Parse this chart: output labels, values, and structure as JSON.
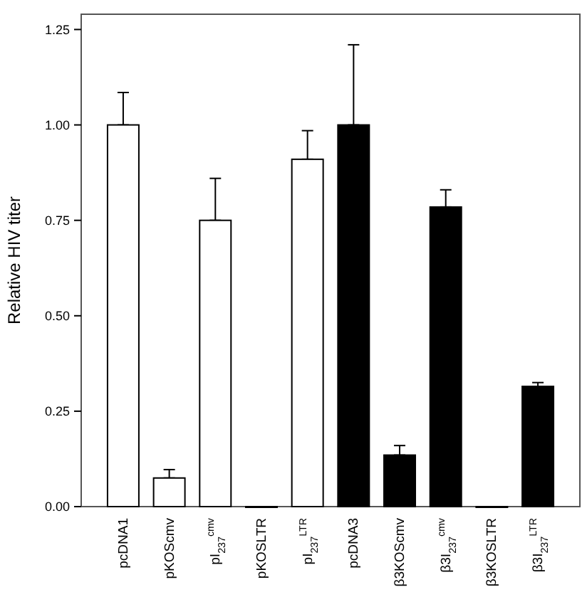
{
  "chart_data": {
    "type": "bar",
    "ylabel": "Relative HIV titer",
    "categories": [
      "pcDNA1",
      "pKOScmv",
      "pI$_{237}$$^{cmv}$",
      "pKOSLTR",
      "pI$_{237}$$^{LTR}$",
      "pcDNA3",
      "β3KOScmv",
      "β3I$_{237}$$^{cmv}$",
      "β3KOSLTR",
      "β3I$_{237}$$^{LTR}$"
    ],
    "values": [
      1.0,
      0.075,
      0.75,
      0,
      0.91,
      1.0,
      0.135,
      0.785,
      0,
      0.315
    ],
    "errors": [
      [
        1.0,
        1.085
      ],
      [
        0.075,
        0.097
      ],
      [
        0.75,
        0.86
      ],
      null,
      [
        0.91,
        0.985
      ],
      [
        1.0,
        1.21
      ],
      [
        0.135,
        0.16
      ],
      [
        0.785,
        0.83
      ],
      null,
      [
        0.315,
        0.325
      ]
    ],
    "colors": [
      "#ffffff",
      "#ffffff",
      "#ffffff",
      "#ffffff",
      "#ffffff",
      "#000000",
      "#000000",
      "#000000",
      "#000000",
      "#000000"
    ],
    "ylim": [
      0,
      1.29
    ],
    "yticks": [
      {
        "value": 0,
        "label": "0.00"
      },
      {
        "value": 0.25,
        "label": "0.25"
      },
      {
        "value": 0.5,
        "label": "0.50"
      },
      {
        "value": 0.75,
        "label": "0.75"
      },
      {
        "value": 1,
        "label": "1.00"
      },
      {
        "value": 1.25,
        "label": "1.25"
      }
    ],
    "grid": false
  }
}
